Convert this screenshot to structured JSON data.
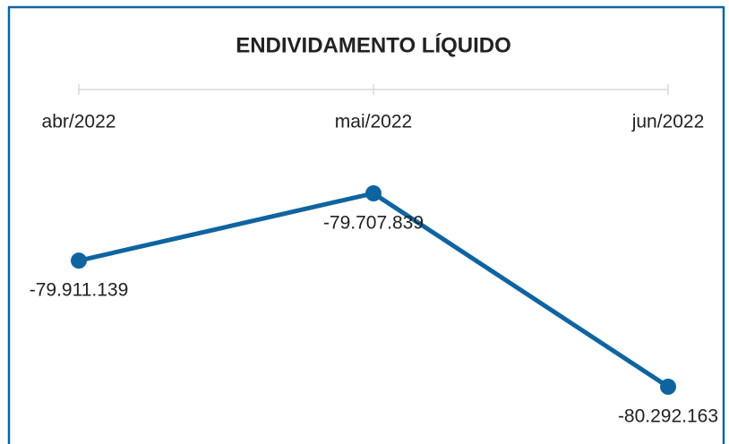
{
  "chart_data": {
    "type": "line",
    "title": "ENDIVIDAMENTO LÍQUIDO",
    "categories": [
      "abr/2022",
      "mai/2022",
      "jun/2022"
    ],
    "values": [
      -79911139,
      -79707839,
      -80292163
    ],
    "value_labels": [
      "-79.911.139",
      "-79.707.839",
      "-80.292.163"
    ],
    "color": "#0f64a0"
  }
}
